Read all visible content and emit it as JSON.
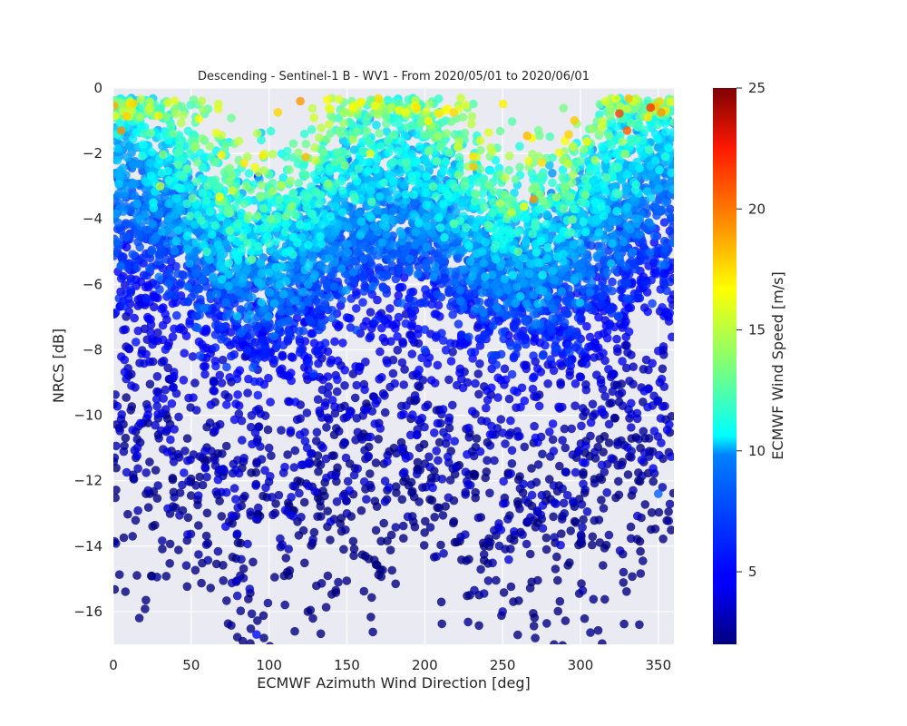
{
  "chart_data": {
    "type": "scatter",
    "title": "Descending - Sentinel-1 B - WV1 - From 2020/05/01 to 2020/06/01",
    "xlabel": "ECMWF Azimuth Wind Direction [deg]",
    "ylabel": "NRCS [dB]",
    "xlim": [
      0,
      360
    ],
    "ylim": [
      -17,
      0
    ],
    "x_ticks": [
      0,
      50,
      100,
      150,
      200,
      250,
      300,
      350
    ],
    "y_ticks": [
      0,
      -2,
      -4,
      -6,
      -8,
      -10,
      -12,
      -14,
      -16
    ],
    "grid": true,
    "background": "#eaeaf2",
    "colormap": "jet",
    "colorbar": {
      "label": "ECMWF Wind Speed [m/s]",
      "range": [
        2,
        25
      ],
      "ticks": [
        5,
        10,
        15,
        20,
        25
      ]
    },
    "point_model": {
      "count": 6500,
      "description_of_pattern": "NRCS rises with wind speed and peaks near upwind (0 and 360 deg) and downwind (180 deg), lower at crosswind (90 and 270 deg)",
      "speed_range": [
        2,
        21
      ],
      "sample_points": [
        {
          "x": 5,
          "y": -1.3,
          "speed": 19
        },
        {
          "x": 10,
          "y": -0.5,
          "speed": 17
        },
        {
          "x": 30,
          "y": -3.0,
          "speed": 15
        },
        {
          "x": 60,
          "y": -5.0,
          "speed": 12
        },
        {
          "x": 93,
          "y": -2.7,
          "speed": 5
        },
        {
          "x": 95,
          "y": -6.0,
          "speed": 9
        },
        {
          "x": 150,
          "y": -2.2,
          "speed": 6
        },
        {
          "x": 165,
          "y": -2.0,
          "speed": 16
        },
        {
          "x": 195,
          "y": -0.6,
          "speed": 17
        },
        {
          "x": 260,
          "y": -5.0,
          "speed": 13
        },
        {
          "x": 270,
          "y": -3.4,
          "speed": 19
        },
        {
          "x": 330,
          "y": -1.3,
          "speed": 20
        },
        {
          "x": 345,
          "y": -0.6,
          "speed": 21
        },
        {
          "x": 200,
          "y": -8.0,
          "speed": 6
        },
        {
          "x": 100,
          "y": -11.0,
          "speed": 3
        },
        {
          "x": 150,
          "y": -13.0,
          "speed": 3
        },
        {
          "x": 250,
          "y": -16.0,
          "speed": 3
        },
        {
          "x": 92,
          "y": -16.7,
          "speed": 5
        },
        {
          "x": 350,
          "y": -12.4,
          "speed": 7
        }
      ]
    }
  }
}
